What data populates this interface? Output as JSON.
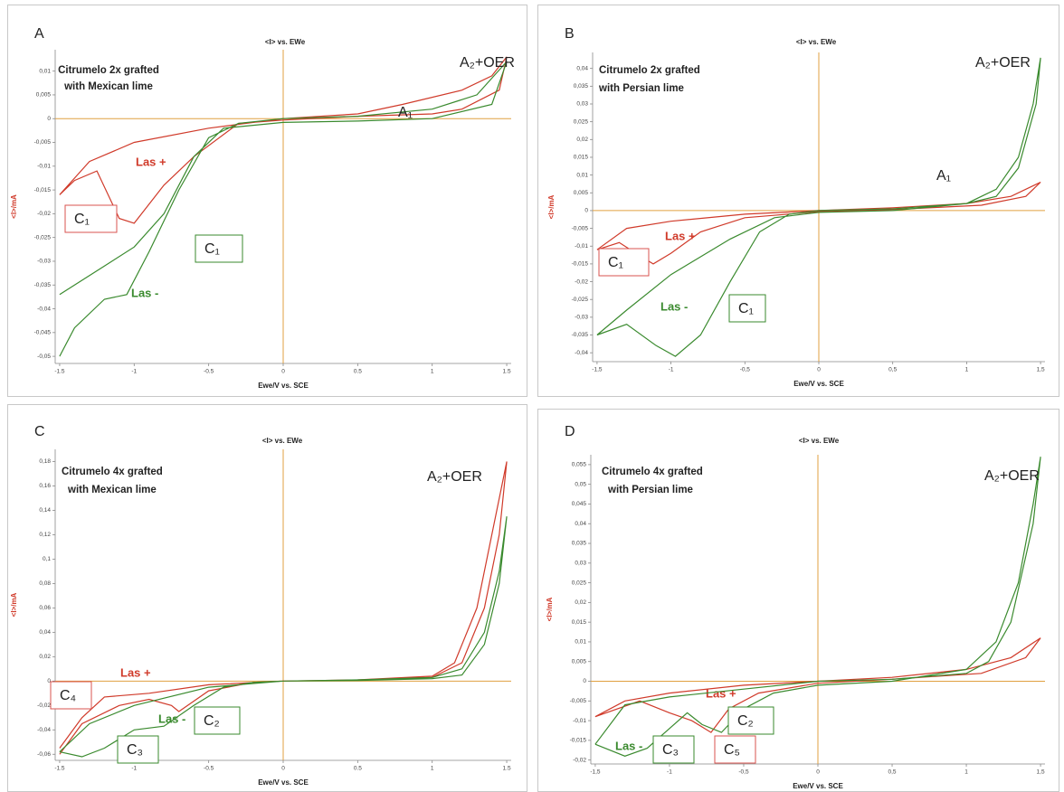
{
  "chart_data": [
    {
      "type": "line",
      "panel_label": "A",
      "title": "<I> vs. EWe",
      "x_label": "Ewe/V vs. SCE",
      "y_label": "<I>/mA",
      "sample": [
        "Citrumelo 2x grafted",
        "with Mexican lime"
      ],
      "xlim": [
        -1.53,
        1.53
      ],
      "xticks": [
        -1.5,
        -1,
        -0.5,
        0,
        0.5,
        1,
        1.5
      ],
      "ylim": [
        -0.0515,
        0.0145
      ],
      "yticks": [
        {
          "value": 0.01,
          "label": "0,01"
        },
        {
          "value": 0.005,
          "label": "0,005"
        },
        0,
        {
          "value": -0.005,
          "label": "-0,005"
        },
        {
          "value": -0.01,
          "label": "-0,01"
        },
        {
          "value": -0.015,
          "label": "-0,015"
        },
        {
          "value": -0.02,
          "label": "-0,02"
        },
        {
          "value": -0.025,
          "label": "-0,025"
        },
        {
          "value": -0.03,
          "label": "-0,03"
        },
        {
          "value": -0.035,
          "label": "-0,035"
        },
        {
          "value": -0.04,
          "label": "-0,04"
        },
        {
          "value": -0.045,
          "label": "-0,045"
        },
        {
          "value": -0.05,
          "label": "-0,05"
        }
      ],
      "annotations": [
        {
          "text": "A₁"
        },
        {
          "text": "A₂+OER"
        },
        {
          "text": "C₁",
          "box": "#d9534f"
        },
        {
          "text": "C₁",
          "box": "#3a8a2e"
        }
      ],
      "series": [
        {
          "name": "Las +",
          "color": "#d03a2a",
          "x": [
            -1.5,
            -1.3,
            -1.0,
            -0.5,
            0,
            0.5,
            0.8,
            1.2,
            1.4,
            1.5,
            1.45,
            1.2,
            1.0,
            0.5,
            0,
            -0.3,
            -0.6,
            -0.8,
            -1.0,
            -1.1,
            -1.25,
            -1.4,
            -1.5
          ],
          "values": [
            -0.016,
            -0.009,
            -0.005,
            -0.002,
            0,
            0.001,
            0.003,
            0.006,
            0.009,
            0.013,
            0.006,
            0.002,
            0.001,
            0.0005,
            -0.0003,
            -0.001,
            -0.008,
            -0.014,
            -0.022,
            -0.021,
            -0.011,
            -0.013,
            -0.016
          ]
        },
        {
          "name": "Las -",
          "color": "#3a8a2e",
          "x": [
            -1.5,
            -1.4,
            -1.2,
            -1.05,
            -0.9,
            -0.7,
            -0.5,
            -0.3,
            0,
            0.5,
            1.0,
            1.3,
            1.5,
            1.4,
            1.0,
            0.5,
            0,
            -0.4,
            -0.6,
            -0.8,
            -1.0,
            -1.2,
            -1.5
          ],
          "values": [
            -0.05,
            -0.044,
            -0.038,
            -0.037,
            -0.028,
            -0.015,
            -0.004,
            -0.001,
            0,
            0.0005,
            0.002,
            0.005,
            0.012,
            0.003,
            0,
            -0.0005,
            -0.0008,
            -0.002,
            -0.008,
            -0.02,
            -0.027,
            -0.031,
            -0.037
          ]
        }
      ]
    },
    {
      "type": "line",
      "panel_label": "B",
      "title": "<I> vs. EWe",
      "x_label": "Ewe/V vs. SCE",
      "y_label": "<I>/mA",
      "sample": [
        "Citrumelo 2x grafted",
        "with Persian lime"
      ],
      "xlim": [
        -1.53,
        1.53
      ],
      "xticks": [
        {
          "value": -1.5,
          "label": "-1,5"
        },
        -1,
        {
          "value": -0.5,
          "label": "-0,5"
        },
        0,
        {
          "value": 0.5,
          "label": "0,5"
        },
        1,
        {
          "value": 1.5,
          "label": "1,5"
        }
      ],
      "ylim": [
        -0.0425,
        0.0445
      ],
      "yticks": [
        {
          "value": 0.04,
          "label": "0,04"
        },
        {
          "value": 0.035,
          "label": "0,035"
        },
        {
          "value": 0.03,
          "label": "0,03"
        },
        {
          "value": 0.025,
          "label": "0,025"
        },
        {
          "value": 0.02,
          "label": "0,02"
        },
        {
          "value": 0.015,
          "label": "0,015"
        },
        {
          "value": 0.01,
          "label": "0,01"
        },
        {
          "value": 0.005,
          "label": "0,005"
        },
        0,
        {
          "value": -0.005,
          "label": "-0,005"
        },
        {
          "value": -0.01,
          "label": "-0,01"
        },
        {
          "value": -0.015,
          "label": "-0,015"
        },
        {
          "value": -0.02,
          "label": "-0,02"
        },
        {
          "value": -0.025,
          "label": "-0,025"
        },
        {
          "value": -0.03,
          "label": "-0,03"
        },
        {
          "value": -0.035,
          "label": "-0,035"
        },
        {
          "value": -0.04,
          "label": "-0,04"
        }
      ],
      "annotations": [
        {
          "text": "A₁"
        },
        {
          "text": "A₂+OER"
        },
        {
          "text": "C₁",
          "box": "#d9534f"
        },
        {
          "text": "C₁",
          "box": "#3a8a2e"
        }
      ],
      "series": [
        {
          "name": "Las +",
          "color": "#d03a2a",
          "x": [
            -1.5,
            -1.3,
            -1.0,
            -0.5,
            0,
            0.5,
            1.0,
            1.3,
            1.5,
            1.4,
            1.1,
            0.5,
            0,
            -0.5,
            -0.8,
            -1.0,
            -1.12,
            -1.2,
            -1.35,
            -1.5
          ],
          "values": [
            -0.011,
            -0.005,
            -0.003,
            -0.001,
            0,
            0.0008,
            0.002,
            0.004,
            0.008,
            0.004,
            0.0015,
            0.0003,
            -0.0003,
            -0.002,
            -0.006,
            -0.012,
            -0.015,
            -0.013,
            -0.009,
            -0.011
          ]
        },
        {
          "name": "Las -",
          "color": "#3a8a2e",
          "x": [
            -1.5,
            -1.3,
            -1.1,
            -0.97,
            -0.8,
            -0.6,
            -0.4,
            -0.2,
            0,
            0.5,
            1.0,
            1.2,
            1.35,
            1.45,
            1.5,
            1.47,
            1.35,
            1.2,
            1.0,
            0.5,
            0,
            -0.3,
            -0.6,
            -1.0,
            -1.3,
            -1.5
          ],
          "values": [
            -0.035,
            -0.032,
            -0.038,
            -0.041,
            -0.035,
            -0.02,
            -0.006,
            -0.001,
            0,
            0.0005,
            0.002,
            0.006,
            0.015,
            0.03,
            0.043,
            0.03,
            0.012,
            0.004,
            0.002,
            0,
            -0.0005,
            -0.002,
            -0.008,
            -0.018,
            -0.028,
            -0.035
          ]
        }
      ]
    },
    {
      "type": "line",
      "panel_label": "C",
      "title": "<I> vs. EWe",
      "x_label": "Ewe/V vs. SCE",
      "y_label": "<I>/mA",
      "sample": [
        "Citrumelo 4x grafted",
        "with Mexican lime"
      ],
      "xlim": [
        -1.53,
        1.53
      ],
      "xticks": [
        -1.5,
        -1,
        -0.5,
        0,
        0.5,
        1,
        1.5
      ],
      "ylim": [
        -0.065,
        0.19
      ],
      "yticks": [
        {
          "value": 0.18,
          "label": "0,18"
        },
        {
          "value": 0.16,
          "label": "0,16"
        },
        {
          "value": 0.14,
          "label": "0,14"
        },
        {
          "value": 0.12,
          "label": "0,12"
        },
        {
          "value": 0.1,
          "label": "0,1"
        },
        {
          "value": 0.08,
          "label": "0,08"
        },
        {
          "value": 0.06,
          "label": "0,06"
        },
        {
          "value": 0.04,
          "label": "0,04"
        },
        {
          "value": 0.02,
          "label": "0,02"
        },
        0,
        {
          "value": -0.02,
          "label": "-0,02"
        },
        {
          "value": -0.04,
          "label": "-0,04"
        },
        {
          "value": -0.06,
          "label": "-0,06"
        }
      ],
      "annotations": [
        {
          "text": "A₂+OER"
        },
        {
          "text": "C₄",
          "box": "#d9534f"
        },
        {
          "text": "C₃",
          "box": "#3a8a2e"
        },
        {
          "text": "C₂",
          "box": "#3a8a2e"
        }
      ],
      "series": [
        {
          "name": "Las +",
          "color": "#d03a2a",
          "x": [
            -1.5,
            -1.35,
            -1.1,
            -0.9,
            -0.75,
            -0.7,
            -0.5,
            -0.2,
            0,
            0.5,
            1.0,
            1.15,
            1.3,
            1.4,
            1.5,
            1.45,
            1.35,
            1.2,
            1.0,
            0.5,
            0,
            -0.5,
            -0.9,
            -1.2,
            -1.35,
            -1.5
          ],
          "values": [
            -0.06,
            -0.035,
            -0.02,
            -0.015,
            -0.02,
            -0.025,
            -0.008,
            -0.001,
            0,
            0.001,
            0.004,
            0.015,
            0.06,
            0.12,
            0.18,
            0.12,
            0.06,
            0.015,
            0.003,
            0.001,
            0,
            -0.003,
            -0.01,
            -0.013,
            -0.03,
            -0.055
          ]
        },
        {
          "name": "Las -",
          "color": "#3a8a2e",
          "x": [
            -1.5,
            -1.35,
            -1.2,
            -1.0,
            -0.8,
            -0.6,
            -0.4,
            -0.2,
            0,
            0.5,
            1.0,
            1.2,
            1.35,
            1.45,
            1.5,
            1.45,
            1.35,
            1.2,
            1.0,
            0.5,
            0,
            -0.5,
            -1.0,
            -1.3,
            -1.5
          ],
          "values": [
            -0.058,
            -0.062,
            -0.055,
            -0.04,
            -0.037,
            -0.02,
            -0.005,
            -0.001,
            0,
            0.001,
            0.003,
            0.01,
            0.04,
            0.09,
            0.135,
            0.08,
            0.03,
            0.005,
            0.002,
            0.0005,
            0,
            -0.005,
            -0.02,
            -0.035,
            -0.058
          ]
        }
      ]
    },
    {
      "type": "line",
      "panel_label": "D",
      "title": "<I> vs. EWe",
      "x_label": "Ewe/V vs. SCE",
      "y_label": "<I>/mA",
      "sample": [
        "Citrumelo 4x grafted",
        "with Persian lime"
      ],
      "xlim": [
        -1.53,
        1.53
      ],
      "xticks": [
        {
          "value": -1.5,
          "label": "-1,5"
        },
        -1,
        {
          "value": -0.5,
          "label": "-0,5"
        },
        0,
        {
          "value": 0.5,
          "label": "0,5"
        },
        1,
        {
          "value": 1.5,
          "label": "1,5"
        }
      ],
      "ylim": [
        -0.021,
        0.0575
      ],
      "yticks": [
        {
          "value": 0.055,
          "label": "0,055"
        },
        {
          "value": 0.05,
          "label": "0,05"
        },
        {
          "value": 0.045,
          "label": "0,045"
        },
        {
          "value": 0.04,
          "label": "0,04"
        },
        {
          "value": 0.035,
          "label": "0,035"
        },
        {
          "value": 0.03,
          "label": "0,03"
        },
        {
          "value": 0.025,
          "label": "0,025"
        },
        {
          "value": 0.02,
          "label": "0,02"
        },
        {
          "value": 0.015,
          "label": "0,015"
        },
        {
          "value": 0.01,
          "label": "0,01"
        },
        {
          "value": 0.005,
          "label": "0,005"
        },
        0,
        {
          "value": -0.005,
          "label": "-0,005"
        },
        {
          "value": -0.01,
          "label": "-0,01"
        },
        {
          "value": -0.015,
          "label": "-0,015"
        },
        {
          "value": -0.02,
          "label": "-0,02"
        }
      ],
      "annotations": [
        {
          "text": "A₂+OER"
        },
        {
          "text": "C₃",
          "box": "#3a8a2e"
        },
        {
          "text": "C₅",
          "box": "#d9534f"
        },
        {
          "text": "C₂",
          "box": "#3a8a2e"
        }
      ],
      "series": [
        {
          "name": "Las +",
          "color": "#d03a2a",
          "x": [
            -1.5,
            -1.3,
            -1.0,
            -0.5,
            0,
            0.5,
            1.0,
            1.3,
            1.5,
            1.4,
            1.1,
            0.5,
            0,
            -0.4,
            -0.6,
            -0.72,
            -0.85,
            -1.0,
            -1.2,
            -1.5
          ],
          "values": [
            -0.009,
            -0.005,
            -0.003,
            -0.001,
            0,
            0.001,
            0.003,
            0.006,
            0.011,
            0.006,
            0.002,
            0.0005,
            -0.0005,
            -0.003,
            -0.007,
            -0.013,
            -0.01,
            -0.008,
            -0.005,
            -0.009
          ]
        },
        {
          "name": "Las -",
          "color": "#3a8a2e",
          "x": [
            -1.5,
            -1.3,
            -1.15,
            -1.0,
            -0.88,
            -0.78,
            -0.65,
            -0.5,
            -0.3,
            0,
            0.5,
            1.0,
            1.2,
            1.35,
            1.45,
            1.5,
            1.45,
            1.3,
            1.15,
            1.0,
            0.5,
            0,
            -0.5,
            -1.0,
            -1.3,
            -1.5
          ],
          "values": [
            -0.016,
            -0.019,
            -0.017,
            -0.012,
            -0.008,
            -0.011,
            -0.013,
            -0.007,
            -0.003,
            -0.001,
            0,
            0.003,
            0.01,
            0.025,
            0.045,
            0.057,
            0.04,
            0.015,
            0.005,
            0.002,
            0.0005,
            0,
            -0.002,
            -0.004,
            -0.006,
            -0.016
          ]
        }
      ]
    }
  ]
}
